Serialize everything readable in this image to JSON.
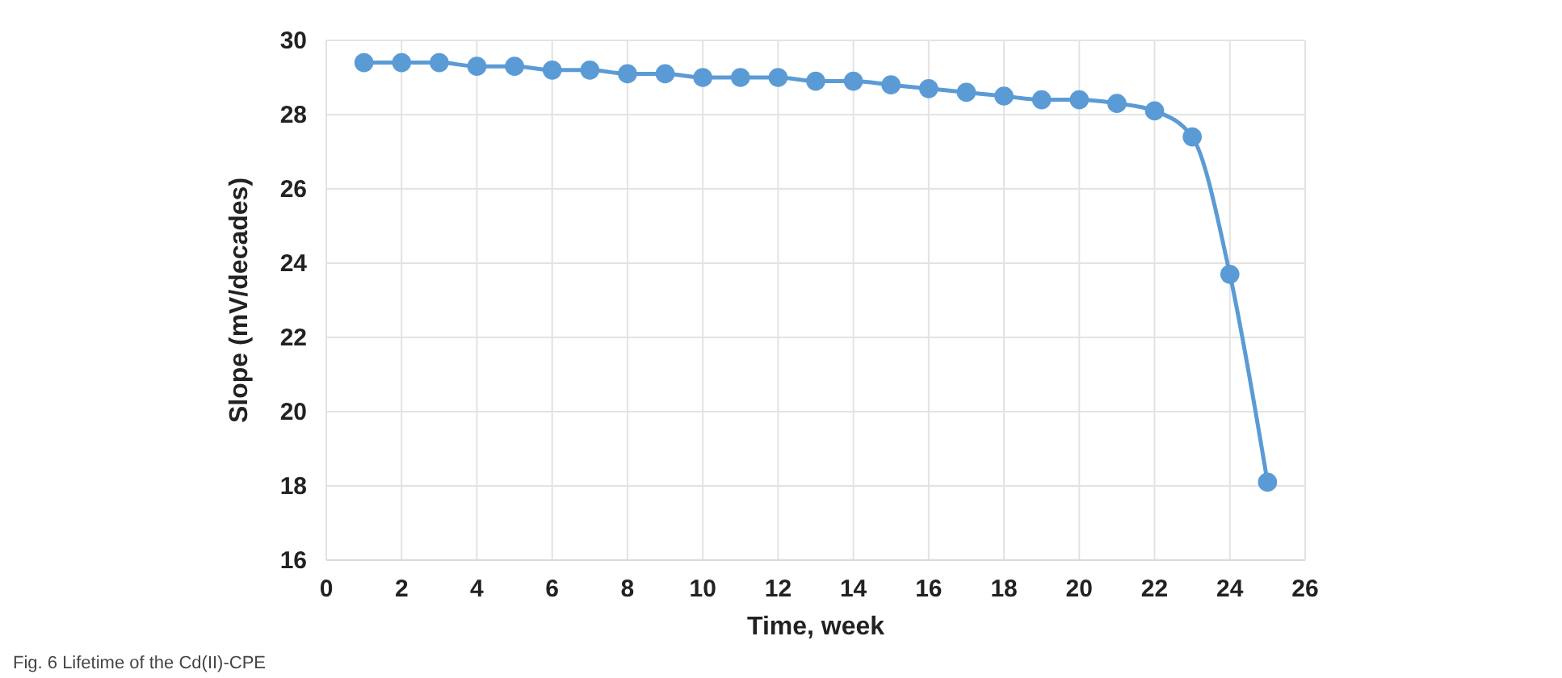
{
  "chart_data": {
    "type": "line",
    "xlabel": "Time, week",
    "ylabel": "Slope (mV/decades)",
    "x": [
      1,
      2,
      3,
      4,
      5,
      6,
      7,
      8,
      9,
      10,
      11,
      12,
      13,
      14,
      15,
      16,
      17,
      18,
      19,
      20,
      21,
      22,
      23,
      24,
      25
    ],
    "series": [
      {
        "color": "#5b9bd5",
        "values": [
          29.4,
          29.4,
          29.4,
          29.3,
          29.3,
          29.2,
          29.2,
          29.1,
          29.1,
          29.0,
          29.0,
          29.0,
          28.9,
          28.9,
          28.8,
          28.7,
          28.6,
          28.5,
          28.4,
          28.4,
          28.3,
          28.1,
          27.4,
          23.7,
          18.1
        ]
      }
    ],
    "xlim": [
      0,
      26
    ],
    "xticks": [
      0,
      2,
      4,
      6,
      8,
      10,
      12,
      14,
      16,
      18,
      20,
      22,
      24,
      26
    ],
    "ylim": [
      16,
      30
    ],
    "yticks": [
      16,
      18,
      20,
      22,
      24,
      26,
      28,
      30
    ],
    "grid": true,
    "marker": "circle",
    "line_style": "solid",
    "annotations": [
      "Fig. 6 Lifetime of the Cd(II)-CPE"
    ]
  }
}
